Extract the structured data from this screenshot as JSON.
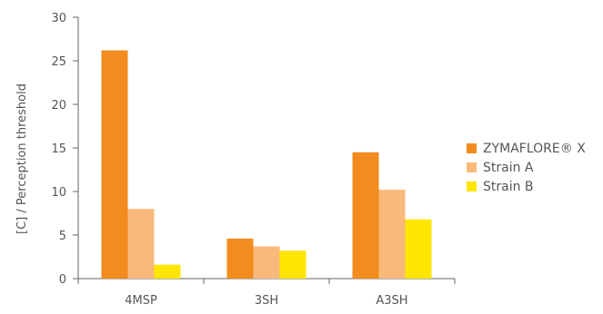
{
  "chart_data": {
    "type": "bar",
    "title": "",
    "xlabel": "",
    "ylabel": "[C] / Perception threshold",
    "ylim": [
      0,
      30
    ],
    "yticks": [
      0,
      5,
      10,
      15,
      20,
      25,
      30
    ],
    "grid": false,
    "legend_position": "right",
    "categories": [
      "4MSP",
      "3SH",
      "A3SH"
    ],
    "series": [
      {
        "name": "ZYMAFLORE® X",
        "color": "#f28c1e",
        "values": [
          26.2,
          4.6,
          14.5
        ]
      },
      {
        "name": "Strain A",
        "color": "#f8b97a",
        "values": [
          8.0,
          3.7,
          10.2
        ]
      },
      {
        "name": "Strain B",
        "color": "#ffe600",
        "values": [
          1.6,
          3.2,
          6.8
        ]
      }
    ]
  }
}
